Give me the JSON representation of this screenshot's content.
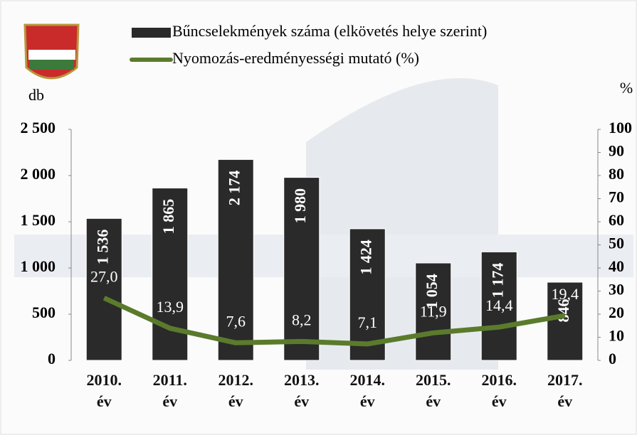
{
  "chart_data": {
    "type": "bar",
    "series": [
      {
        "name": "Bűncselekmények száma (elkövetés helye szerint)",
        "color": "#2a2a2a",
        "values": [
          1536,
          1865,
          2174,
          1980,
          1424,
          1054,
          1174,
          846
        ],
        "value_labels": [
          "1 536",
          "1 865",
          "2 174",
          "1 980",
          "1 424",
          "1 054",
          "1 174",
          "846"
        ]
      },
      {
        "name": "Nyomozás-eredményességi mutató (%)",
        "color": "#5b7b2c",
        "type": "line",
        "axis": "y2",
        "values": [
          27.0,
          13.9,
          7.6,
          8.2,
          7.1,
          11.9,
          14.4,
          19.4
        ],
        "value_labels": [
          "27,0",
          "13,9",
          "7,6",
          "8,2",
          "7,1",
          "11,9",
          "14,4",
          "19,4"
        ]
      }
    ],
    "categories": [
      "2010. év",
      "2011. év",
      "2012. év",
      "2013. év",
      "2014. év",
      "2015. év",
      "2016. év",
      "2017. év"
    ],
    "ylabel": "db",
    "y2label": "%",
    "ylim": [
      0,
      2500
    ],
    "yticks": [
      0,
      500,
      {
        "value": 1000,
        "label": "1 000"
      },
      {
        "value": 1500,
        "label": "1 500"
      },
      {
        "value": 2000,
        "label": "2 000"
      },
      {
        "value": 2500,
        "label": "2 500"
      }
    ],
    "y2lim": [
      0,
      100
    ],
    "y2ticks": [
      0,
      10,
      20,
      30,
      40,
      50,
      60,
      70,
      80,
      90,
      100
    ]
  }
}
